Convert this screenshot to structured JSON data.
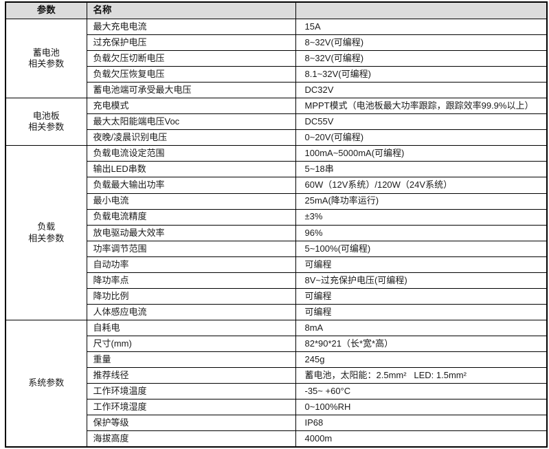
{
  "table": {
    "headers": {
      "col1": "参数",
      "col2": "名称",
      "col3": ""
    },
    "groups": [
      {
        "label": "蓄电池\n相关参数",
        "rows": [
          {
            "name": "最大充电电流",
            "value": "15A"
          },
          {
            "name": "过充保护电压",
            "value": "8~32V(可编程)"
          },
          {
            "name": "负载欠压切断电压",
            "value": "8~32V(可编程)"
          },
          {
            "name": "负载欠压恢复电压",
            "value": "8.1~32V(可编程)"
          },
          {
            "name": "蓄电池端可承受最大电压",
            "value": "DC32V"
          }
        ]
      },
      {
        "label": "电池板\n相关参数",
        "rows": [
          {
            "name": "充电模式",
            "value": "MPPT模式（电池板最大功率跟踪，跟踪效率99.9%以上）"
          },
          {
            "name": "最大太阳能端电压Voc",
            "value": "DC55V"
          },
          {
            "name": "夜晚/凌晨识别电压",
            "value": "0~20V(可编程)"
          }
        ]
      },
      {
        "label": "负载\n相关参数",
        "rows": [
          {
            "name": "负载电流设定范围",
            "value": "100mA~5000mA(可编程)"
          },
          {
            "name": "输出LED串数",
            "value": "5~18串"
          },
          {
            "name": "负载最大输出功率",
            "value": "60W（12V系统）/120W（24V系统）"
          },
          {
            "name": "最小电流",
            "value": "25mA(降功率运行)"
          },
          {
            "name": "负载电流精度",
            "value": "±3%"
          },
          {
            "name": "放电驱动最大效率",
            "value": "96%"
          },
          {
            "name": "功率调节范围",
            "value": "5~100%(可编程)"
          },
          {
            "name": "自动功率",
            "value": "可编程"
          },
          {
            "name": "降功率点",
            "value": "8V~过充保护电压(可编程)"
          },
          {
            "name": "降功比例",
            "value": "可编程"
          },
          {
            "name": "人体感应电流",
            "value": "可编程"
          }
        ]
      },
      {
        "label": "系统参数",
        "rows": [
          {
            "name": "自耗电",
            "value": "8mA"
          },
          {
            "name": "尺寸(mm)",
            "value": "82*90*21（长*宽*高）"
          },
          {
            "name": "重量",
            "value": "245g"
          },
          {
            "name": "推荐线径",
            "value": "蓄电池，太阳能：2.5mm²   LED: 1.5mm²"
          },
          {
            "name": "工作环境温度",
            "value": "-35~ +60°C"
          },
          {
            "name": "工作环境湿度",
            "value": "0~100%RH"
          },
          {
            "name": "保护等级",
            "value": "IP68"
          },
          {
            "name": "海拔高度",
            "value": "4000m"
          }
        ]
      }
    ]
  }
}
